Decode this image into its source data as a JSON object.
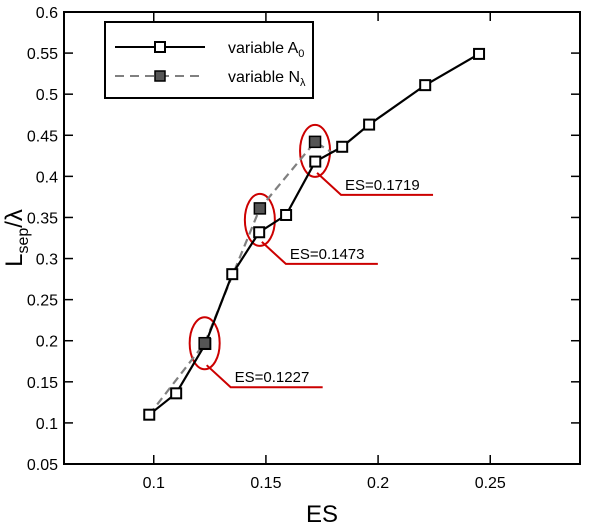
{
  "chart_data": {
    "type": "line",
    "xlabel": "ES",
    "ylabel": {
      "main": "L",
      "sub": "sep",
      "suffix": "/λ"
    },
    "xlim": [
      0.06,
      0.29
    ],
    "ylim": [
      0.05,
      0.6
    ],
    "xticks": [
      0.1,
      0.15,
      0.2,
      0.25
    ],
    "xtick_labels": [
      "0.1",
      "0.15",
      "0.2",
      "0.25"
    ],
    "yticks": [
      0.05,
      0.1,
      0.15,
      0.2,
      0.25,
      0.3,
      0.35,
      0.4,
      0.45,
      0.5,
      0.55,
      0.6
    ],
    "ytick_labels": [
      "0.05",
      "0.1",
      "0.15",
      "0.2",
      "0.25",
      "0.3",
      "0.35",
      "0.4",
      "0.45",
      "0.5",
      "0.55",
      "0.6"
    ],
    "grid": false,
    "legend_position": "top-left",
    "series": [
      {
        "name": "variable A",
        "name_subscript": "0",
        "line_style": "solid",
        "line_color": "#000000",
        "marker": "open-square",
        "x": [
          0.098,
          0.11,
          0.123,
          0.135,
          0.147,
          0.159,
          0.172,
          0.184,
          0.196,
          0.221,
          0.245
        ],
        "y": [
          0.11,
          0.136,
          0.196,
          0.281,
          0.332,
          0.353,
          0.418,
          0.436,
          0.463,
          0.511,
          0.549
        ]
      },
      {
        "name": "variable N",
        "name_subscript": "λ",
        "line_style": "dashed",
        "line_color": "#808080",
        "marker": "filled-square",
        "marker_color": "#555555",
        "x": [
          0.1227,
          0.1473,
          0.1719
        ],
        "y": [
          0.197,
          0.361,
          0.442
        ]
      }
    ],
    "annotations": [
      {
        "text": "ES=0.1227",
        "x": 0.1227,
        "y": 0.197
      },
      {
        "text": "ES=0.1473",
        "x": 0.1473,
        "y": 0.347
      },
      {
        "text": "ES=0.1719",
        "x": 0.1719,
        "y": 0.431
      }
    ],
    "highlight_color": "#cc0000"
  }
}
